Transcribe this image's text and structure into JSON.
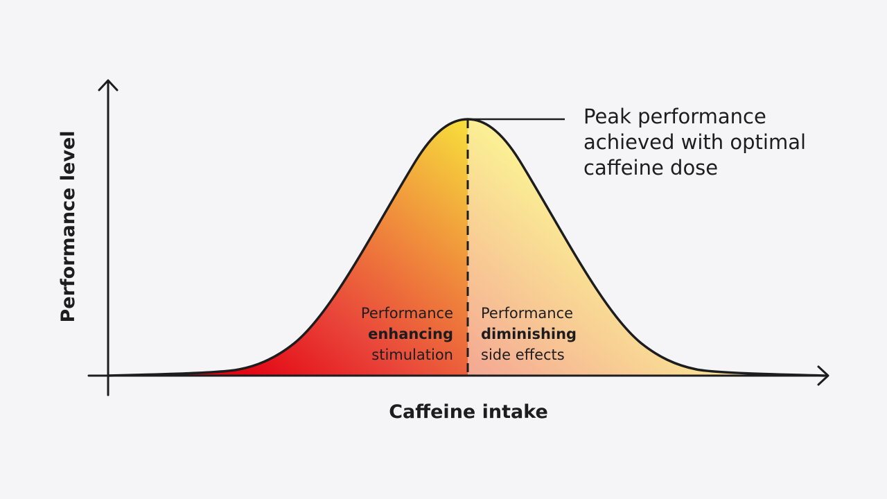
{
  "colors": {
    "background": "#f5f5f7",
    "ink": "#1d1d1f",
    "gradient_peak": "#f7e03c",
    "gradient_base": "#e30613",
    "right_half_tint": "#fde8ec"
  },
  "axes": {
    "y_label": "Performance level",
    "x_label": "Caffeine intake"
  },
  "peak_callout": {
    "lines": [
      "Peak performance",
      "achieved with optimal",
      "caffeine dose"
    ]
  },
  "regions": {
    "left": {
      "line1": "Performance",
      "line2": "enhancing",
      "line3": "stimulation"
    },
    "right": {
      "line1": "Performance",
      "line2": "diminishing",
      "line3": "side effects"
    }
  }
}
